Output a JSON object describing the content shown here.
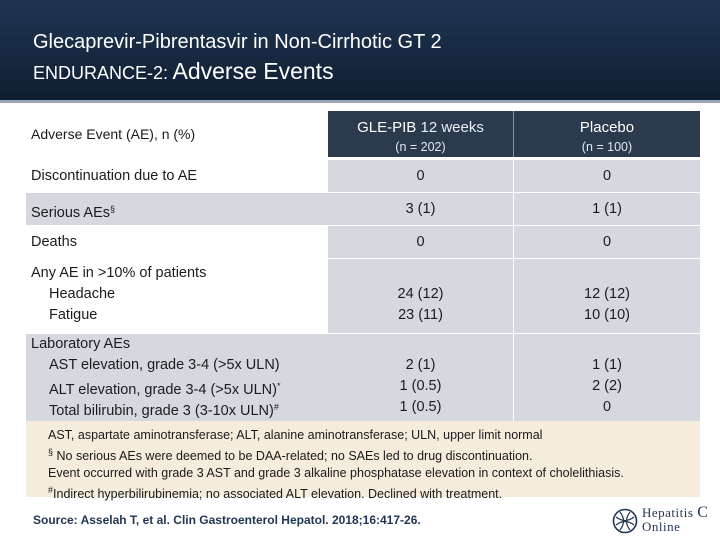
{
  "slide": {
    "title_line1": "Glecaprevir-Pibrentasvir in Non-Cirrhotic GT 2",
    "title_line2_prefix": "ENDURANCE-2:",
    "title_line2_main": "Adverse Events"
  },
  "table": {
    "col1_header": "Adverse Event (AE), n (%)",
    "col2_header_bold": "GLE-PIB",
    "col2_header_light": "12 weeks",
    "col2_n": "(n = 202)",
    "col3_header": "Placebo",
    "col3_n": "(n = 100)",
    "rows": [
      {
        "label": "Discontinuation due to AE",
        "gp": "0",
        "pl": "0"
      },
      {
        "label": "Serious AEs",
        "sup": "§",
        "gp": "3 (1)",
        "pl": "1 (1)"
      },
      {
        "label": "Deaths",
        "gp": "0",
        "pl": "0"
      }
    ],
    "any_ae": {
      "label": "Any AE in >10% of patients",
      "items": [
        {
          "label": "Headache",
          "gp": "24 (12)",
          "pl": "12 (12)"
        },
        {
          "label": "Fatigue",
          "gp": "23 (11)",
          "pl": "10 (10)"
        }
      ]
    },
    "lab_ae": {
      "label": "Laboratory AEs",
      "items": [
        {
          "label": "AST elevation, grade 3-4 (>5x ULN)",
          "sup": "",
          "gp": "2 (1)",
          "pl": "1 (1)"
        },
        {
          "label": "ALT elevation, grade 3-4 (>5x ULN)",
          "sup": "*",
          "gp": "1 (0.5)",
          "pl": "2 (2)"
        },
        {
          "label": "Total bilirubin, grade 3 (3-10x ULN)",
          "sup": "#",
          "gp": "1 (0.5)",
          "pl": "0"
        }
      ]
    }
  },
  "footnotes": {
    "abbrev": "AST, aspartate aminotransferase; ALT, alanine aminotransferase; ULN, upper limit normal",
    "sec_mark": "§",
    "sec_text": "No serious AEs were deemed to be DAA-related; no SAEs led to drug discontinuation.",
    "star_text": "Event occurred with grade 3 AST and grade 3 alkaline phosphatase elevation in context of cholelithiasis.",
    "hash_mark": "#",
    "hash_text": "Indirect hyperbilirubinemia; no associated ALT elevation. Declined with treatment."
  },
  "source": "Source: Asselah T, et al. Clin Gastroenterol Hepatol. 2018;16:417-26.",
  "logo": {
    "line1": "Hepatitis",
    "line1_letter": "C",
    "line2": "Online",
    "accent": "#1f3552"
  }
}
